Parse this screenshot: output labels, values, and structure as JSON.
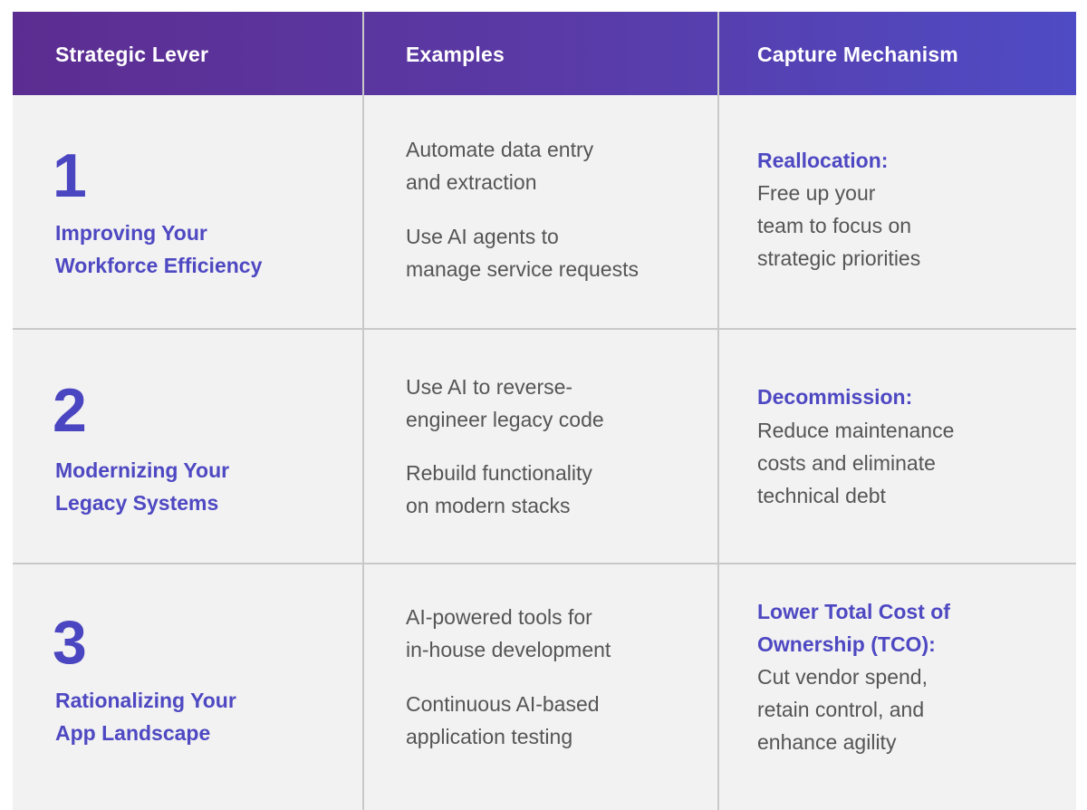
{
  "headers": [
    "Strategic Lever",
    "Examples",
    "Capture Mechanism"
  ],
  "rows": [
    {
      "number": "1",
      "lever": [
        "Improving Your",
        "Workforce Efficiency"
      ],
      "examples": [
        [
          "Automate data entry",
          "and extraction"
        ],
        [
          "Use AI agents to",
          "manage service requests"
        ]
      ],
      "capture_title": [
        "Reallocation:"
      ],
      "capture_body": [
        "Free up your",
        "team to focus on",
        "strategic priorities"
      ]
    },
    {
      "number": "2",
      "lever": [
        "Modernizing Your",
        "Legacy Systems"
      ],
      "examples": [
        [
          "Use AI to reverse-",
          "engineer legacy code"
        ],
        [
          "Rebuild functionality",
          "on modern stacks"
        ]
      ],
      "capture_title": [
        "Decommission:"
      ],
      "capture_body": [
        "Reduce maintenance",
        "costs and eliminate",
        "technical debt"
      ]
    },
    {
      "number": "3",
      "lever": [
        "Rationalizing Your",
        "App Landscape"
      ],
      "examples": [
        [
          "AI-powered tools for",
          "in-house development"
        ],
        [
          "Continuous AI-based",
          "application testing"
        ]
      ],
      "capture_title": [
        "Lower Total Cost of",
        "Ownership (TCO):"
      ],
      "capture_body": [
        "Cut vendor spend,",
        "retain control, and",
        "enhance agility"
      ]
    }
  ]
}
